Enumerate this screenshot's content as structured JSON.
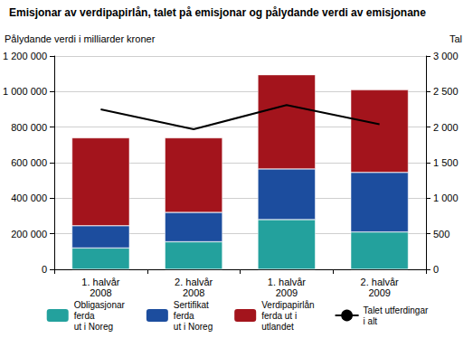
{
  "chart_data": {
    "type": "bar",
    "title": "Emisjonar av verdipapirlån, talet på emisjonar og pålydande verdi av emisjonane",
    "y_label": "Pålydande verdi i milliarder kroner",
    "y2_label": "Tal",
    "categories": [
      "1. halvår\n2008",
      "2. halvår\n2008",
      "1. halvår\n2009",
      "2. halvår\n2009"
    ],
    "series": [
      {
        "name": "Obligasjonar\nferda\nut i Noreg",
        "color": "#23a19d",
        "values": [
          120000,
          155000,
          280000,
          210000
        ]
      },
      {
        "name": "Sertifikat\nferda\nut i Noreg",
        "color": "#1c4d9e",
        "values": [
          125000,
          165000,
          285000,
          335000
        ]
      },
      {
        "name": "Verdipapirlån\nferda ut i\nutlandet",
        "color": "#a3141c",
        "values": [
          495000,
          420000,
          530000,
          465000
        ]
      },
      {
        "name": "Talet utferdingar\ni alt",
        "color": "#000000",
        "type": "line",
        "axis": "y2",
        "values": [
          2250,
          1970,
          2310,
          2040
        ]
      }
    ],
    "ylim": [
      0,
      1200000
    ],
    "yticks": [
      0,
      {
        "value": 200000,
        "label": "200 000"
      },
      {
        "value": 400000,
        "label": "400 000"
      },
      {
        "value": 600000,
        "label": "600 000"
      },
      {
        "value": 800000,
        "label": "800 000"
      },
      {
        "value": 1000000,
        "label": "1 000 000"
      },
      {
        "value": 1200000,
        "label": "1 200 000"
      }
    ],
    "y2lim": [
      0,
      3000
    ],
    "y2ticks": [
      0,
      500,
      {
        "value": 1000,
        "label": "1 000"
      },
      {
        "value": 1500,
        "label": "1 500"
      },
      {
        "value": 2000,
        "label": "2 000"
      },
      {
        "value": 2500,
        "label": "2 500"
      },
      {
        "value": 3000,
        "label": "3 000"
      }
    ],
    "stacked": true,
    "grid": true,
    "legend": "bottom"
  }
}
